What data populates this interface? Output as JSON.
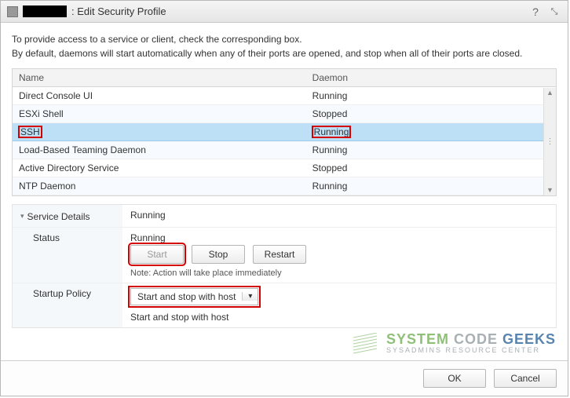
{
  "title": ": Edit Security Profile",
  "description_line1": "To provide access to a service or client, check the corresponding box.",
  "description_line2": "By default, daemons will start automatically when any of their ports are opened, and stop when all of their ports are closed.",
  "columns": {
    "name": "Name",
    "daemon": "Daemon"
  },
  "rows": [
    {
      "name": "Direct Console UI",
      "daemon": "Running",
      "selected": false,
      "even": false
    },
    {
      "name": "ESXi Shell",
      "daemon": "Stopped",
      "selected": false,
      "even": true
    },
    {
      "name": "SSH",
      "daemon": "Running",
      "selected": true,
      "even": false,
      "highlight": true
    },
    {
      "name": "Load-Based Teaming Daemon",
      "daemon": "Running",
      "selected": false,
      "even": true
    },
    {
      "name": "Active Directory Service",
      "daemon": "Stopped",
      "selected": false,
      "even": false
    },
    {
      "name": "NTP Daemon",
      "daemon": "Running",
      "selected": false,
      "even": true
    }
  ],
  "details": {
    "header_label": "Service Details",
    "header_value": "Running",
    "status_label": "Status",
    "status_value": "Running",
    "start_label": "Start",
    "stop_label": "Stop",
    "restart_label": "Restart",
    "note": "Note: Action will take place immediately",
    "startup_label": "Startup Policy",
    "startup_selected": "Start and stop with host",
    "startup_echo": "Start and stop with host"
  },
  "footer": {
    "ok": "OK",
    "cancel": "Cancel"
  },
  "watermark": {
    "line1a": "SYSTEM",
    "line1b": " CODE ",
    "line1c": "GEEKS",
    "line2": "SYSADMINS RESOURCE CENTER"
  },
  "colors": {
    "selected_row": "#bde0f7",
    "highlight_border": "#d40000"
  }
}
